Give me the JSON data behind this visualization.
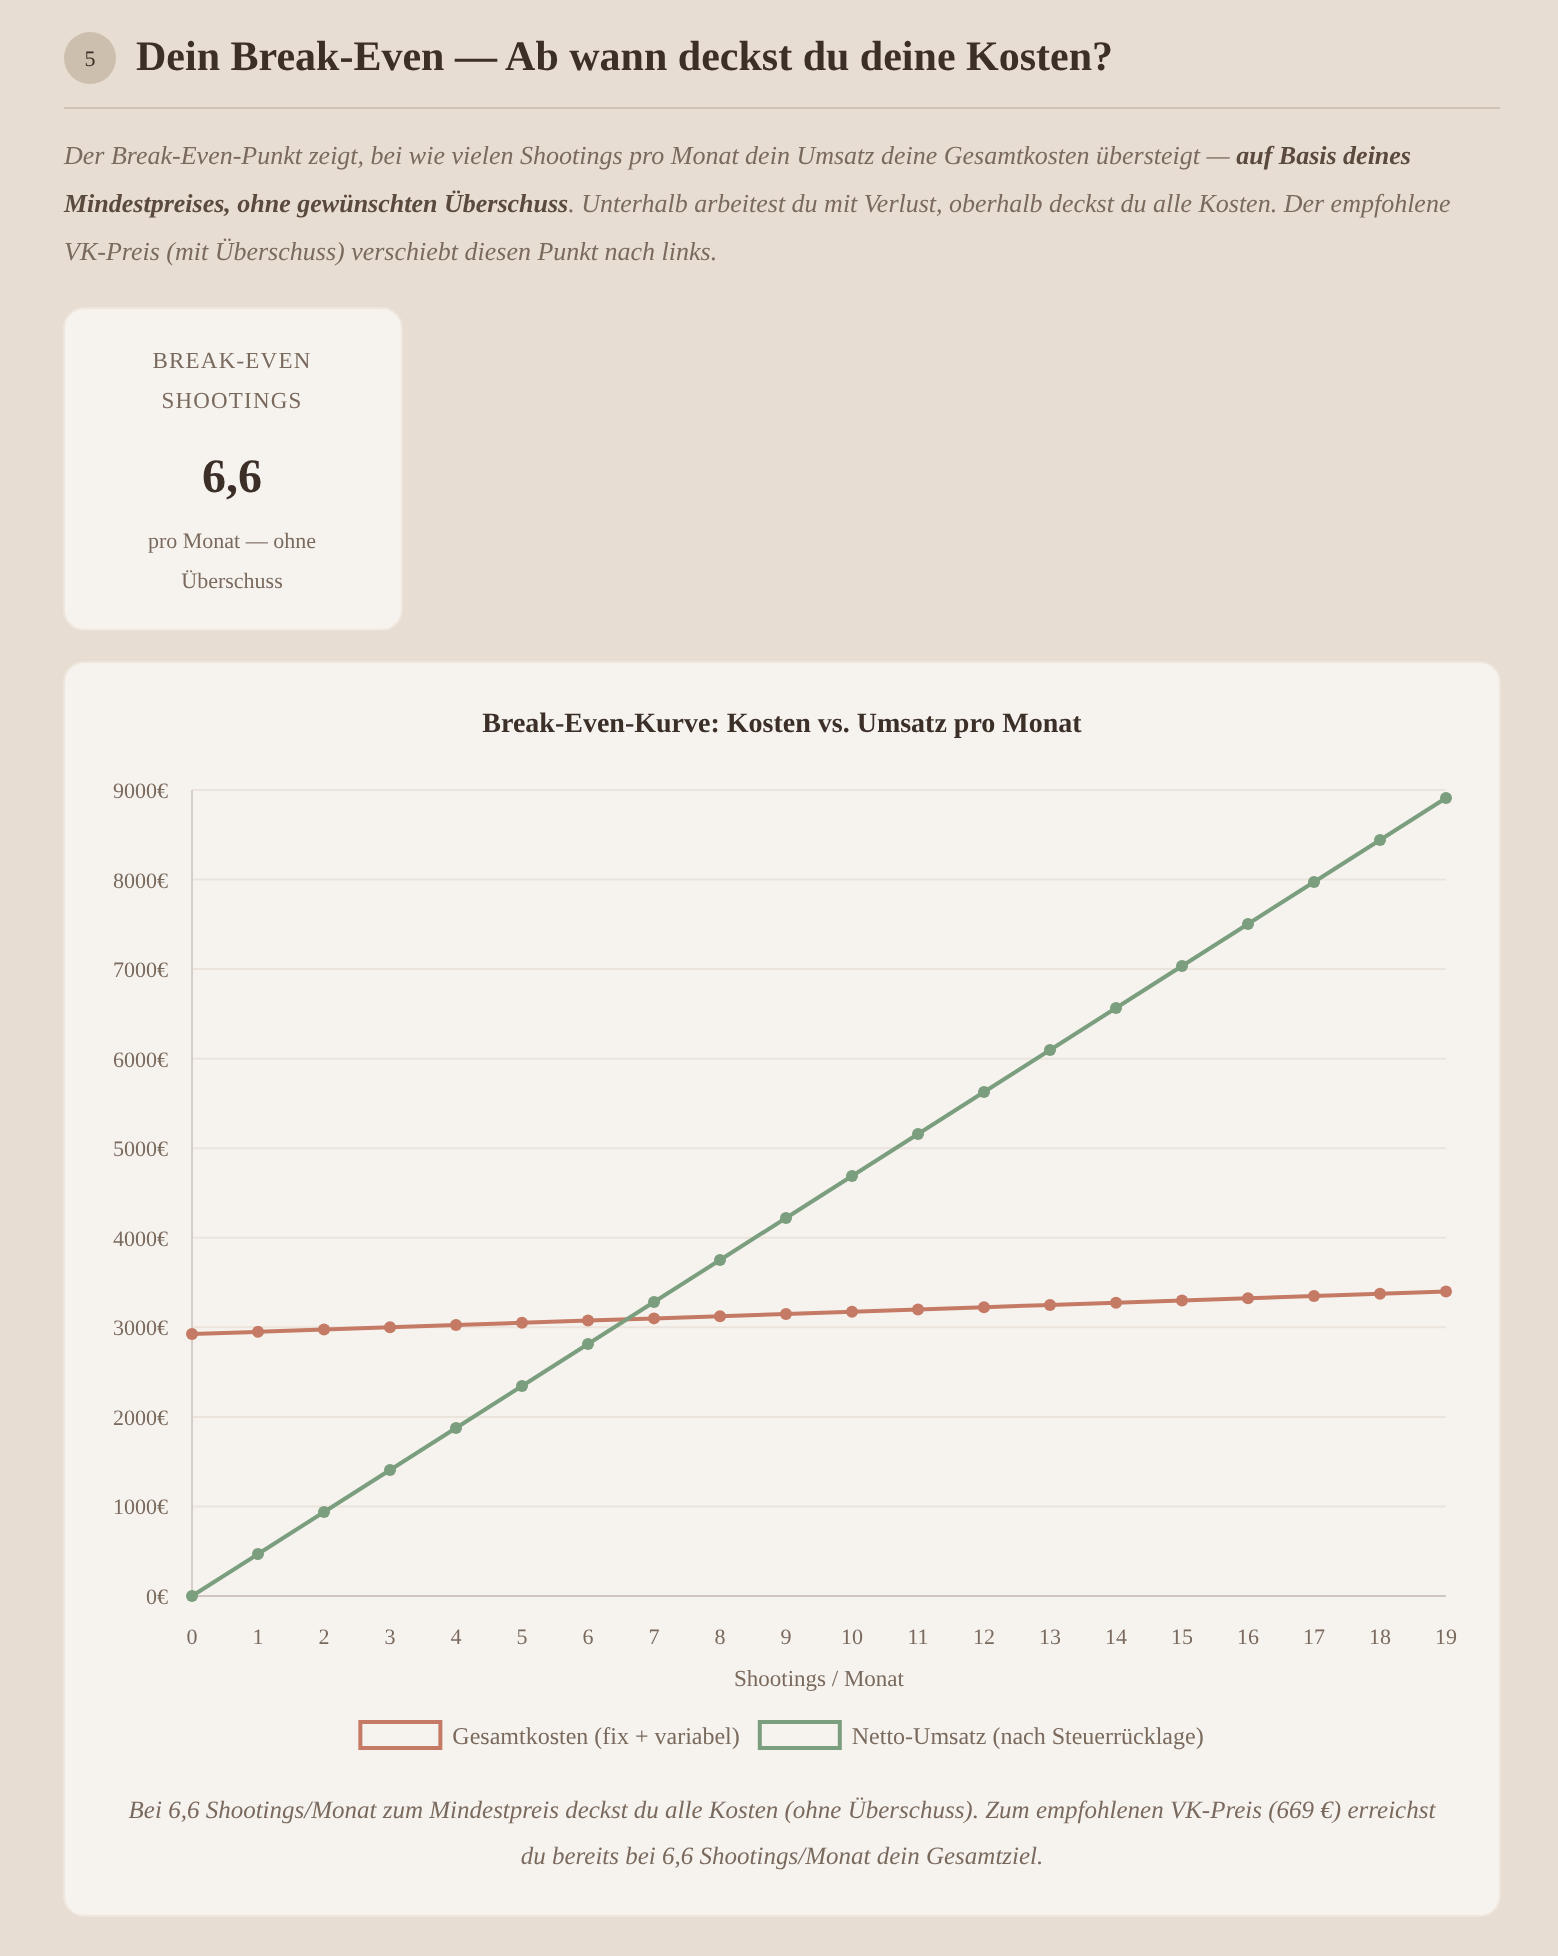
{
  "chart_data": [
    {
      "type": "other",
      "title": "Dein Break-Even — Ab wann deckst du deine Kosten?",
      "annotations": [
        "5",
        "Der Break-Even-Punkt zeigt, bei wie vielen Shootings pro Monat dein Umsatz deine Gesamtkosten übersteigt — ",
        "auf Basis deines Mindestpreises, ohne gewünschten Überschuss",
        ". Unterhalb arbeitest du mit Verlust, oberhalb deckst du alle Kosten. Der empfohlene VK-Preis (mit Überschuss) verschiebt diesen Punkt nach links."
      ]
    },
    {
      "type": "other",
      "title": "BREAK-EVEN SHOOTINGS",
      "annotations": [
        "6,6",
        "pro Monat — ohne Überschuss"
      ]
    },
    {
      "type": "line",
      "title": "Break-Even-Kurve: Kosten vs. Umsatz pro Monat",
      "xlabel": "Shootings / Monat",
      "x": [
        0,
        1,
        2,
        3,
        4,
        5,
        6,
        7,
        8,
        9,
        10,
        11,
        12,
        13,
        14,
        15,
        16,
        17,
        18,
        19
      ],
      "series": [
        {
          "name": "Gesamtkosten (fix + variabel)",
          "color": "#c47a64",
          "values": [
            2925,
            2950,
            2975,
            3000,
            3025,
            3050,
            3075,
            3100,
            3125,
            3150,
            3175,
            3200,
            3225,
            3250,
            3275,
            3300,
            3325,
            3350,
            3375,
            3400
          ]
        },
        {
          "name": "Netto-Umsatz (nach Steuerrücklage)",
          "color": "#7a9e7e",
          "values": [
            0,
            469,
            938,
            1407,
            1876,
            2345,
            2814,
            3283,
            3752,
            4221,
            4690,
            5159,
            5628,
            6097,
            6566,
            7035,
            7504,
            7973,
            8442,
            8911
          ]
        }
      ],
      "xlim": [
        0,
        19
      ],
      "xticks": [
        0,
        1,
        2,
        3,
        4,
        5,
        6,
        7,
        8,
        9,
        10,
        11,
        12,
        13,
        14,
        15,
        16,
        17,
        18,
        19
      ],
      "ylim": [
        0,
        9000
      ],
      "yticks": [
        {
          "value": 0,
          "label": "0€"
        },
        {
          "value": 1000,
          "label": "1000€"
        },
        {
          "value": 2000,
          "label": "2000€"
        },
        {
          "value": 3000,
          "label": "3000€"
        },
        {
          "value": 4000,
          "label": "4000€"
        },
        {
          "value": 5000,
          "label": "5000€"
        },
        {
          "value": 6000,
          "label": "6000€"
        },
        {
          "value": 7000,
          "label": "7000€"
        },
        {
          "value": 8000,
          "label": "8000€"
        },
        {
          "value": 9000,
          "label": "9000€"
        }
      ],
      "grid": "y",
      "legend": "bottom",
      "marker": "circle",
      "line_style": "solid",
      "annotations": [
        "Bei 6,6 Shootings/Monat zum Mindestpreis deckst du alle Kosten (ohne Überschuss). Zum empfohlenen VK-Preis (669 €) erreichst du bereits bei 6,6 Shootings/Monat dein Gesamtziel."
      ]
    }
  ]
}
